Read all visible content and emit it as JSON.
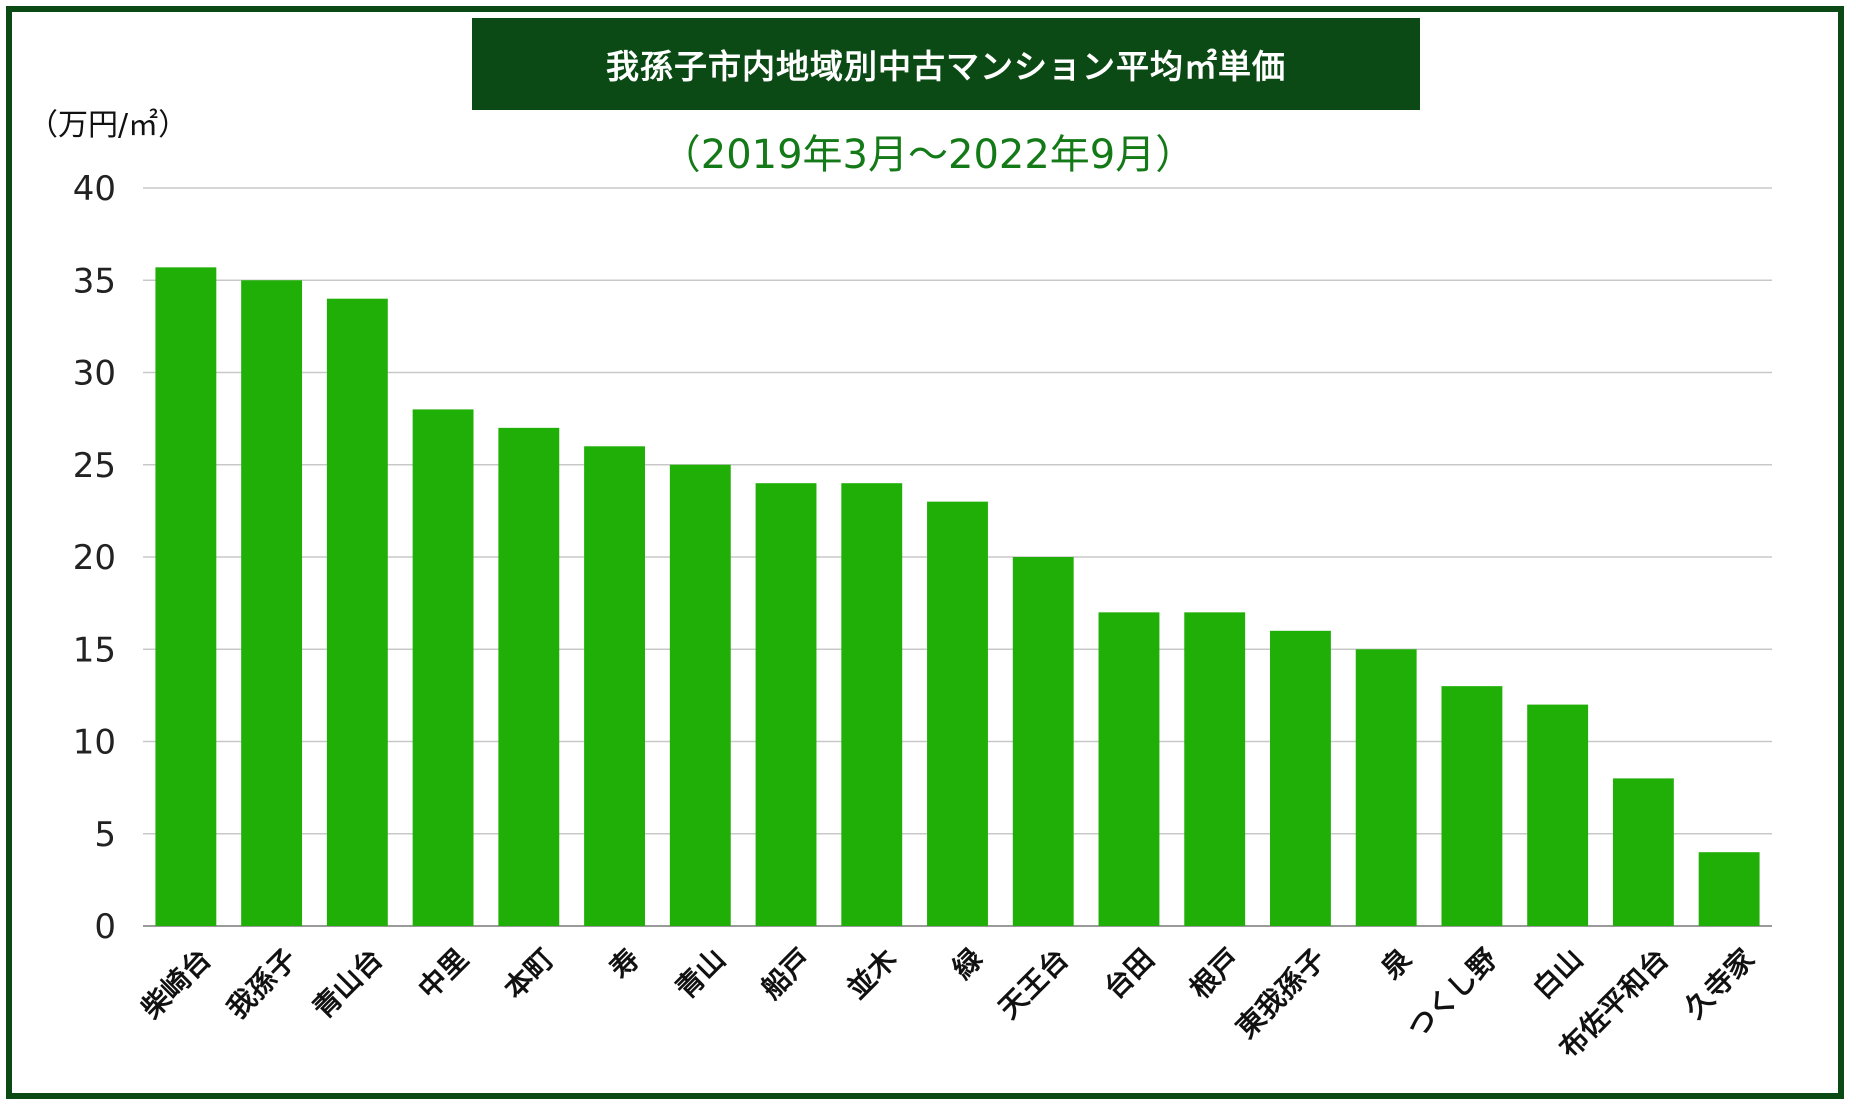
{
  "chart_data": {
    "type": "bar",
    "title": "我孫子市内地域別中古マンション平均㎡単価",
    "subtitle": "（2019年3月〜2022年9月）",
    "ylabel": "（万円/㎡）",
    "ylim": [
      0,
      40
    ],
    "yticks": [
      0,
      5,
      10,
      15,
      20,
      25,
      30,
      35,
      40
    ],
    "grid": true,
    "categories": [
      "柴崎台",
      "我孫子",
      "青山台",
      "中里",
      "本町",
      "寿",
      "青山",
      "船戸",
      "並木",
      "緑",
      "天王台",
      "台田",
      "根戸",
      "東我孫子",
      "泉",
      "つくし野",
      "白山",
      "布佐平和台",
      "久寺家"
    ],
    "values": [
      35.7,
      35,
      34,
      28,
      27,
      26,
      25,
      24,
      24,
      23,
      20,
      17,
      17,
      16,
      15,
      13,
      12,
      8,
      4
    ]
  },
  "colors": {
    "bar": "#1faf06",
    "title_bg": "#0b4a14",
    "title_text": "#ffffff",
    "subtitle": "#137a17",
    "grid": "#c8c8c8",
    "frame": "#0b4a14"
  }
}
